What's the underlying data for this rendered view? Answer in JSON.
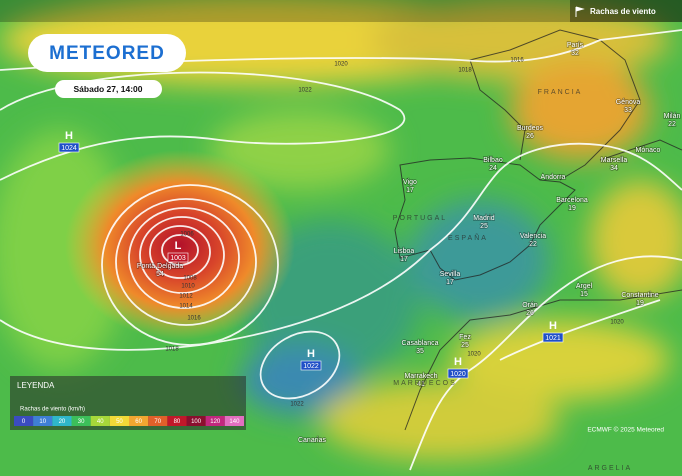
{
  "header": {
    "logo": "METEORED",
    "date": "Sábado 27, 14:00",
    "layer": "Rachas de viento"
  },
  "legend": {
    "title": "LEYENDA",
    "label": "Rachas de viento (km/h)",
    "ticks": [
      "0",
      "10",
      "20",
      "30",
      "40",
      "50",
      "60",
      "70",
      "80",
      "100",
      "120",
      "140"
    ]
  },
  "pressure_centers": [
    {
      "type": "H",
      "value": "1024"
    },
    {
      "type": "L",
      "value": "1003"
    },
    {
      "type": "H",
      "value": "1022"
    },
    {
      "type": "H",
      "value": "1020"
    },
    {
      "type": "H",
      "value": "1021"
    }
  ],
  "isobar_labels": [
    "1020",
    "1018",
    "1016",
    "1022",
    "1006",
    "1008",
    "1010",
    "1012",
    "1014",
    "1016",
    "1018",
    "1020",
    "1020",
    "1022"
  ],
  "cities": [
    {
      "name": "Ponta Delgada",
      "value": "54"
    },
    {
      "name": "Vigo",
      "value": "17"
    },
    {
      "name": "Bilbao",
      "value": "24"
    },
    {
      "name": "Burdeos",
      "value": "26"
    },
    {
      "name": "Barcelona",
      "value": "19"
    },
    {
      "name": "Madrid",
      "value": "25"
    },
    {
      "name": "Valencia",
      "value": "22"
    },
    {
      "name": "Lisboa",
      "value": "17"
    },
    {
      "name": "Sevilla",
      "value": "17"
    },
    {
      "name": "Orán",
      "value": "26"
    },
    {
      "name": "Argel",
      "value": "15"
    },
    {
      "name": "Constantine",
      "value": "19"
    },
    {
      "name": "Casablanca",
      "value": "35"
    },
    {
      "name": "Fez",
      "value": "25"
    },
    {
      "name": "Marrakech",
      "value": "41"
    },
    {
      "name": "Marsella",
      "value": "34"
    },
    {
      "name": "Génova",
      "value": "33"
    },
    {
      "name": "Milán",
      "value": "22"
    },
    {
      "name": "París",
      "value": "32"
    }
  ],
  "places": [
    "Andorra",
    "Mónaco",
    "Canarias"
  ],
  "countries": [
    "FRANCIA",
    "PORTUGAL",
    "ESPAÑA",
    "MARRUECOS",
    "ARGELIA"
  ],
  "credit": "ECMWF © 2025 Meteored"
}
